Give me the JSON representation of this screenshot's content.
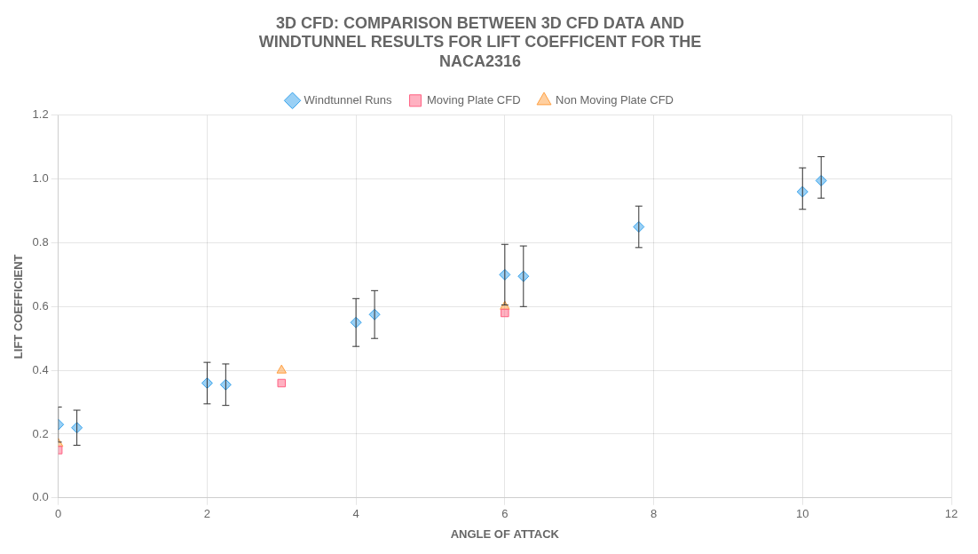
{
  "chart_data": {
    "type": "scatter",
    "title": [
      "3D CFD: COMPARISON BETWEEN 3D CFD DATA AND",
      "WINDTUNNEL RESULTS FOR LIFT COEFFICENT FOR THE",
      "NACA2316"
    ],
    "xlabel": "ANGLE OF ATTACK",
    "ylabel": "LIFT COEFFICIENT",
    "xlim": [
      0,
      12
    ],
    "ylim": [
      0,
      1.2
    ],
    "xticks": [
      0,
      2,
      4,
      6,
      8,
      10,
      12
    ],
    "yticks": [
      {
        "value": 0,
        "label": "0.0"
      },
      0.2,
      0.4,
      0.6,
      0.8,
      {
        "value": 1.0,
        "label": "1.0"
      },
      1.2
    ],
    "grid": true,
    "legend": "top",
    "series": [
      {
        "name": "Windtunnel Runs",
        "marker": "diamond",
        "x": [
          0,
          0.25,
          2,
          2.25,
          4,
          4.25,
          6,
          6.25,
          7.8,
          10,
          10.25
        ],
        "values": [
          0.23,
          0.22,
          0.36,
          0.355,
          0.55,
          0.575,
          0.7,
          0.695,
          0.85,
          0.96,
          0.995
        ],
        "yerr_low": [
          0.055,
          0.055,
          0.065,
          0.065,
          0.075,
          0.075,
          0.095,
          0.095,
          0.065,
          0.055,
          0.055
        ],
        "yerr_high": [
          0.055,
          0.055,
          0.065,
          0.065,
          0.075,
          0.075,
          0.095,
          0.095,
          0.065,
          0.075,
          0.075
        ]
      },
      {
        "name": "Moving Plate CFD",
        "marker": "square",
        "x": [
          0,
          3,
          6
        ],
        "values": [
          0.15,
          0.36,
          0.58
        ]
      },
      {
        "name": "Non Moving Plate CFD",
        "marker": "triangle",
        "x": [
          0,
          3,
          6
        ],
        "values": [
          0.17,
          0.4,
          0.6
        ]
      }
    ]
  }
}
